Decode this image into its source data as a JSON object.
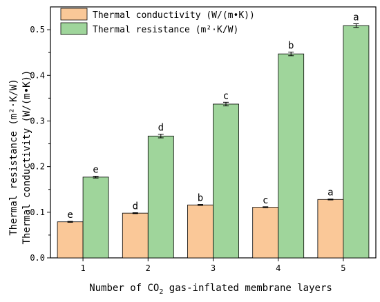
{
  "chart_data": {
    "type": "bar",
    "categories": [
      "1",
      "2",
      "3",
      "4",
      "5"
    ],
    "xlabel_before": "Number of CO",
    "xlabel_sub": "2",
    "xlabel_after": " gas-inflated membrane layers",
    "ylabel_line1": "Thermal resistance (m²·K/W)",
    "ylabel_line2": "Thermal conductivity (W/(m•K))",
    "ylim": [
      0,
      0.55
    ],
    "yticks": [
      "0.0",
      "0.1",
      "0.2",
      "0.3",
      "0.4",
      "0.5"
    ],
    "grid": false,
    "legend_position": "top-left",
    "series": [
      {
        "name": "Thermal conductivity (W/(m•K))",
        "color": "#fac898",
        "values": [
          0.079,
          0.098,
          0.116,
          0.111,
          0.128
        ],
        "errors": [
          0.001,
          0.001,
          0.001,
          0.001,
          0.001
        ],
        "labels": [
          "e",
          "d",
          "b",
          "c",
          "a"
        ]
      },
      {
        "name": "Thermal resistance (m²·K/W)",
        "color": "#9fd59b",
        "values": [
          0.177,
          0.267,
          0.337,
          0.447,
          0.509
        ],
        "errors": [
          0.002,
          0.004,
          0.004,
          0.004,
          0.004
        ],
        "labels": [
          "e",
          "d",
          "c",
          "b",
          "a"
        ]
      }
    ]
  }
}
